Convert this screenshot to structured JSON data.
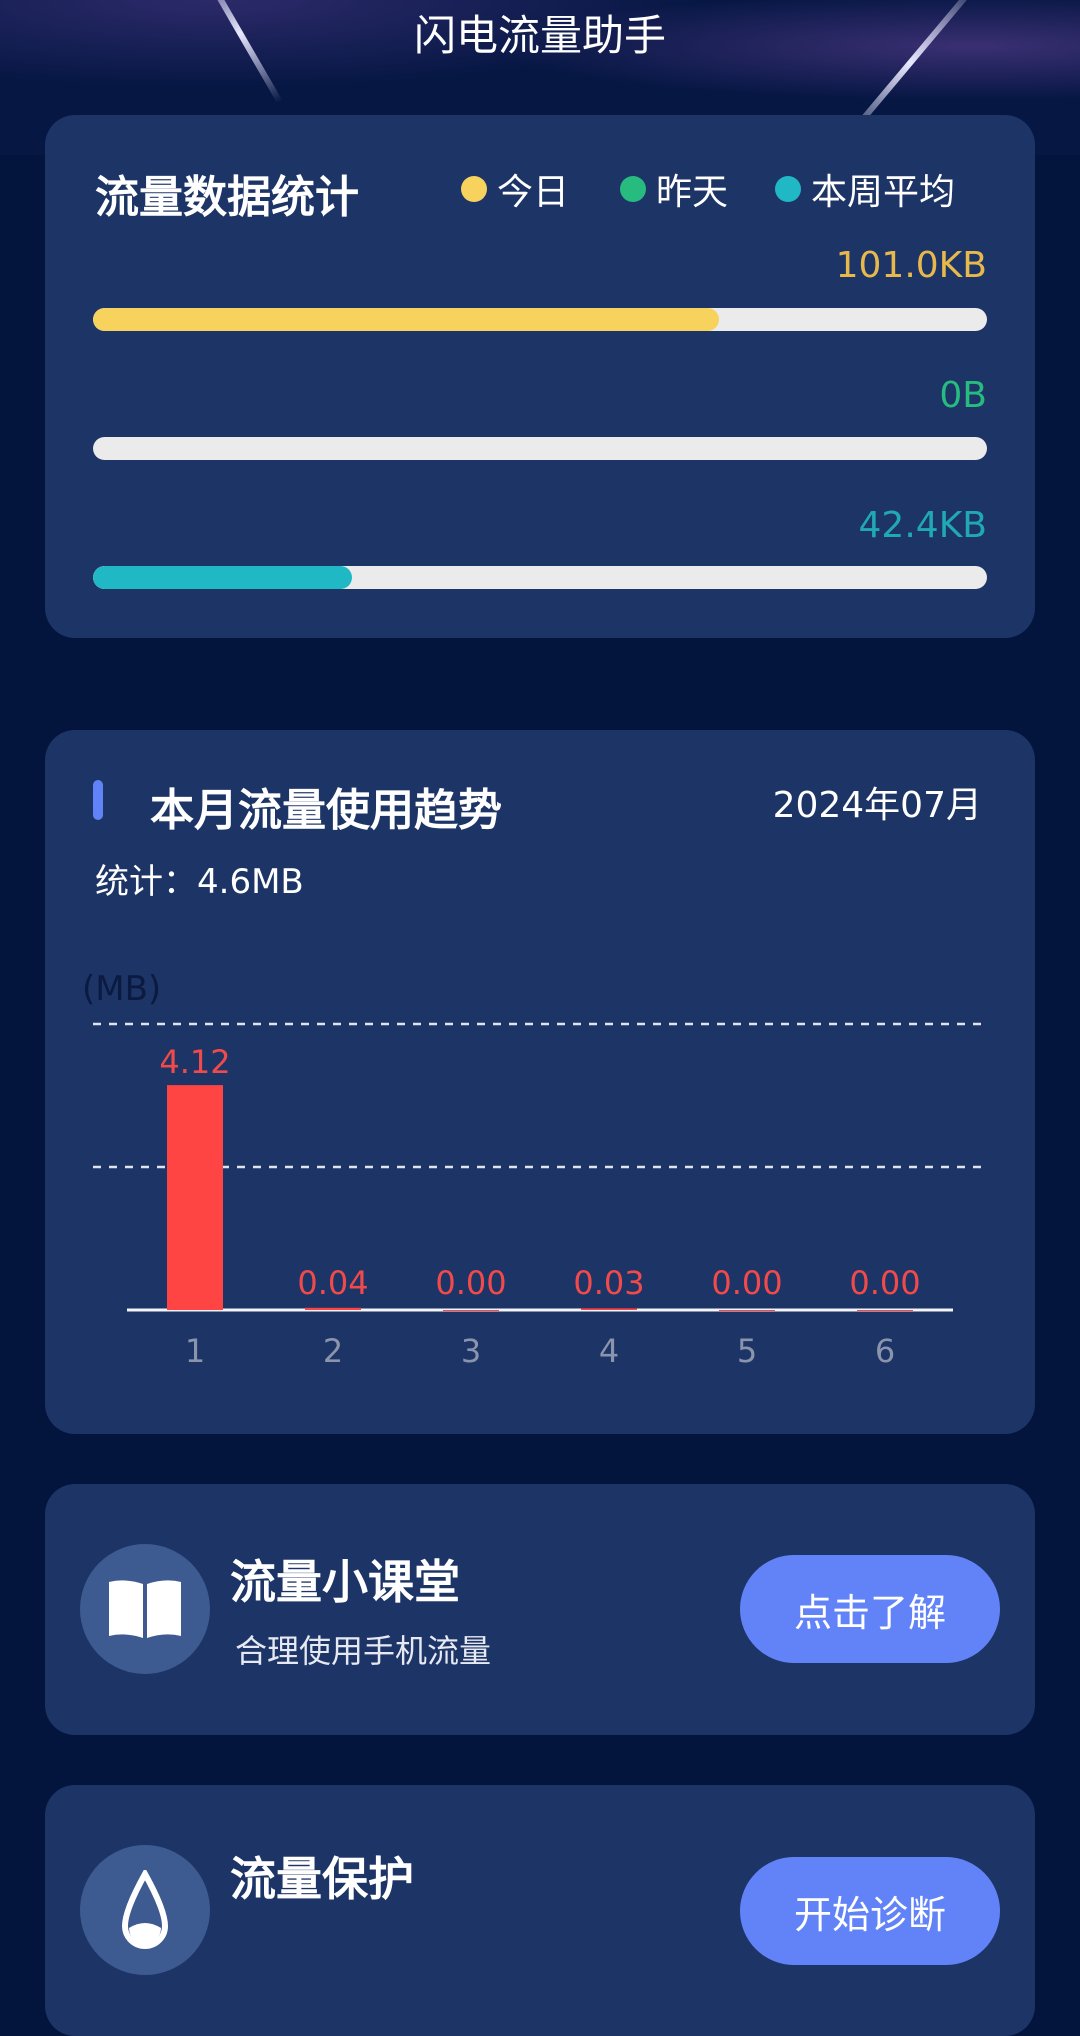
{
  "header": {
    "title": "闪电流量助手"
  },
  "stats": {
    "title": "流量数据统计",
    "legend": [
      {
        "label": "今日",
        "color": "#f7d25c"
      },
      {
        "label": "昨天",
        "color": "#27bb7f"
      },
      {
        "label": "本周平均",
        "color": "#20b8c4"
      }
    ],
    "bars": [
      {
        "value": "101.0KB",
        "fraction": 0.7,
        "color": "#f7d25c"
      },
      {
        "value": "0B",
        "fraction": 0,
        "color": "#27bb7f"
      },
      {
        "value": "42.4KB",
        "fraction": 0.29,
        "color": "#20b8c4"
      }
    ]
  },
  "trend": {
    "title": "本月流量使用趋势",
    "month": "2024年07月",
    "total": "统计：4.6MB",
    "accent": "#6283f7"
  },
  "chart_data": {
    "type": "bar",
    "unit_label": "(MB)",
    "categories": [
      "1",
      "2",
      "3",
      "4",
      "5",
      "6"
    ],
    "values": [
      4.12,
      0.04,
      0.0,
      0.03,
      0.0,
      0.0
    ],
    "labels": [
      "4.12",
      "0.04",
      "0.00",
      "0.03",
      "0.00",
      "0.00"
    ],
    "ylim": [
      0,
      5.24
    ],
    "grid": true,
    "bar_color": "#ff4444"
  },
  "lesson": {
    "title": "流量小课堂",
    "subtitle": "合理使用手机流量",
    "button": "点击了解",
    "icon": "book-icon"
  },
  "protect": {
    "title": "流量保护",
    "button": "开始诊断",
    "icon": "drop-icon"
  }
}
